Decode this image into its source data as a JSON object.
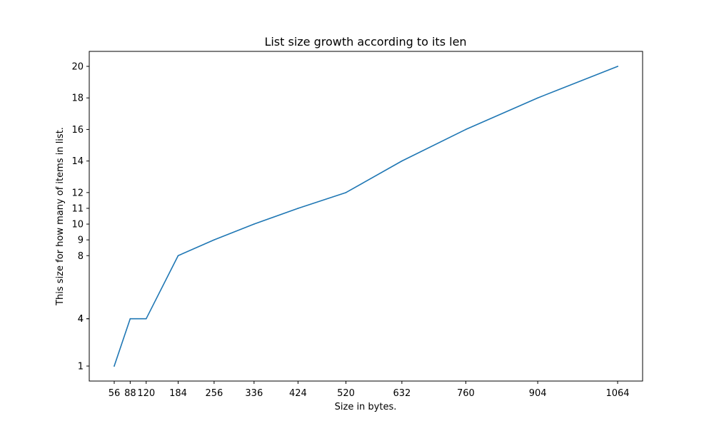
{
  "chart_data": {
    "type": "line",
    "title": "List size growth according to its len",
    "xlabel": "Size in bytes.",
    "ylabel": "This size for how many of items in list.",
    "x_ticks": [
      "56",
      "88",
      "120",
      "184",
      "256",
      "336",
      "424",
      "520",
      "632",
      "760",
      "904",
      "1064"
    ],
    "y_ticks": [
      "1",
      "4",
      "4",
      "8",
      "9",
      "10",
      "11",
      "12",
      "14",
      "16",
      "18",
      "20"
    ],
    "xlim": [
      6,
      1114
    ],
    "ylim": [
      0.05,
      20.95
    ],
    "grid": false,
    "series": [
      {
        "color": "#1f77b4",
        "x": [
          56,
          88,
          120,
          184,
          256,
          336,
          424,
          520,
          632,
          760,
          904,
          1064
        ],
        "y": [
          1,
          4,
          4,
          8,
          9,
          10,
          11,
          12,
          14,
          16,
          18,
          20
        ]
      }
    ]
  }
}
